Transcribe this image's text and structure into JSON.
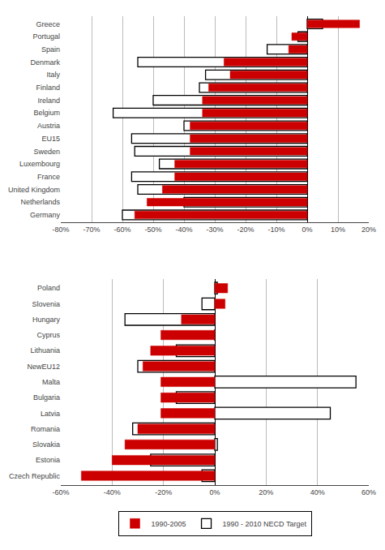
{
  "chart_data": [
    {
      "type": "bar",
      "orientation": "horizontal",
      "grid": true,
      "categories": [
        "Germany",
        "Netherlands",
        "United Kingdom",
        "France",
        "Luxembourg",
        "Sweden",
        "EU15",
        "Austria",
        "Belgium",
        "Ireland",
        "Finland",
        "Italy",
        "Denmark",
        "Spain",
        "Portugal",
        "Greece"
      ],
      "series": [
        {
          "name": "1990-2005",
          "color": "#cc0000",
          "values": [
            -56,
            -52,
            -47,
            -43,
            -43,
            -38,
            -38,
            -38,
            -34,
            -34,
            -32,
            -25,
            -27,
            -6,
            -5,
            17
          ]
        },
        {
          "name": "1990 - 2010 NECD Target",
          "color": "#000000",
          "values": [
            -60,
            -40,
            -55,
            -57,
            -48,
            -56,
            -57,
            -40,
            -63,
            -50,
            -35,
            -33,
            -55,
            -13,
            -3,
            5
          ]
        }
      ],
      "xlim": [
        -80,
        20
      ],
      "xticks": [
        {
          "value": -80,
          "label": "-80%"
        },
        {
          "value": -70,
          "label": "-70%"
        },
        {
          "value": -60,
          "label": "-60%"
        },
        {
          "value": -50,
          "label": "-50%"
        },
        {
          "value": -40,
          "label": "-40%"
        },
        {
          "value": -30,
          "label": "-30%"
        },
        {
          "value": -20,
          "label": "-20%"
        },
        {
          "value": -10,
          "label": "-10%"
        },
        {
          "value": 0,
          "label": "0%"
        },
        {
          "value": 10,
          "label": "10%"
        },
        {
          "value": 20,
          "label": "20%"
        }
      ]
    },
    {
      "type": "bar",
      "orientation": "horizontal",
      "grid": true,
      "legend": "bottom",
      "categories": [
        "Czech Republic",
        "Estonia",
        "Slovakia",
        "Romania",
        "Latvia",
        "Bulgaria",
        "Malta",
        "NewEU12",
        "Lithuania",
        "Cyprus",
        "Hungary",
        "Slovenia",
        "Poland"
      ],
      "series": [
        {
          "name": "1990-2005",
          "color": "#cc0000",
          "values": [
            -52,
            -40,
            -35,
            -30,
            -21,
            -21,
            -21,
            -28,
            -25,
            -21,
            -13,
            4,
            5
          ]
        },
        {
          "name": "1990 - 2010 NECD Target",
          "color": "#000000",
          "values": [
            -5,
            -25,
            1,
            -32,
            45,
            -15,
            55,
            -30,
            -15,
            0,
            -35,
            -5,
            1
          ]
        }
      ],
      "xlim": [
        -60,
        60
      ],
      "xticks": [
        {
          "value": -60,
          "label": "-60%"
        },
        {
          "value": -40,
          "label": "-40%"
        },
        {
          "value": -20,
          "label": "-20%"
        },
        {
          "value": 0,
          "label": "0%"
        },
        {
          "value": 20,
          "label": "20%"
        },
        {
          "value": 40,
          "label": "40%"
        },
        {
          "value": 60,
          "label": "60%"
        }
      ]
    }
  ]
}
